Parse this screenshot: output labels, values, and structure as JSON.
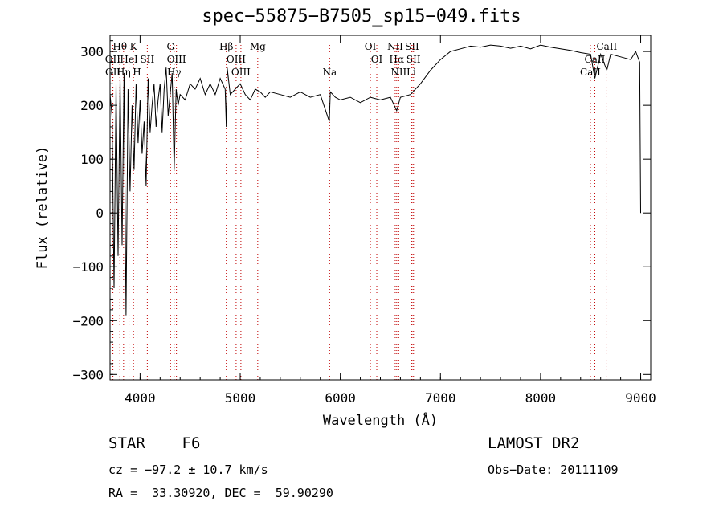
{
  "header": {
    "title": "spec−55875−B7505_sp15−049.fits"
  },
  "info": {
    "object_line": "STAR    F6",
    "survey": "LAMOST DR2",
    "cz": "cz = −97.2 ± 10.7 km/s",
    "obs_date": "Obs−Date: 20111109",
    "radec": "RA =  33.30920, DEC =  59.90290"
  },
  "chart_data": {
    "type": "line",
    "title": "spec−55875−B7505_sp15−049.fits",
    "xlabel": "Wavelength (Å)",
    "ylabel": "Flux (relative)",
    "xlim": [
      3700,
      9100
    ],
    "ylim": [
      -310,
      330
    ],
    "xticks": [
      4000,
      5000,
      6000,
      7000,
      8000,
      9000
    ],
    "xtick_labels": [
      "4000",
      "5000",
      "6000",
      "7000",
      "8000",
      "9000"
    ],
    "yticks": [
      -300,
      -200,
      -100,
      0,
      100,
      200,
      300
    ],
    "ytick_labels": [
      "−300",
      "−200",
      "−100",
      "0",
      "100",
      "200",
      "300"
    ],
    "grid": false,
    "line_color": "#000000",
    "marker_color": "#c00000",
    "series": [
      {
        "x": [
          3700,
          3720,
          3740,
          3760,
          3780,
          3800,
          3820,
          3840,
          3860,
          3880,
          3900,
          3920,
          3940,
          3960,
          3980,
          4000,
          4020,
          4040,
          4060,
          4080,
          4100,
          4120,
          4140,
          4160,
          4180,
          4200,
          4220,
          4240,
          4260,
          4280,
          4300,
          4320,
          4340,
          4360,
          4380,
          4400,
          4450,
          4500,
          4550,
          4600,
          4650,
          4700,
          4750,
          4800,
          4850,
          4861,
          4870,
          4900,
          4950,
          5000,
          5050,
          5100,
          5150,
          5200,
          5250,
          5300,
          5400,
          5500,
          5600,
          5700,
          5800,
          5890,
          5900,
          5950,
          6000,
          6100,
          6200,
          6300,
          6400,
          6500,
          6563,
          6600,
          6700,
          6800,
          6900,
          7000,
          7100,
          7200,
          7300,
          7400,
          7500,
          7600,
          7700,
          7800,
          7900,
          8000,
          8100,
          8200,
          8300,
          8400,
          8500,
          8542,
          8600,
          8662,
          8700,
          8800,
          8900,
          8950,
          8990,
          9000
        ],
        "values": [
          220,
          180,
          -140,
          240,
          -80,
          250,
          -60,
          260,
          -190,
          230,
          40,
          200,
          80,
          240,
          130,
          210,
          110,
          170,
          50,
          250,
          150,
          200,
          240,
          160,
          210,
          240,
          150,
          230,
          270,
          180,
          220,
          260,
          80,
          230,
          200,
          220,
          210,
          240,
          230,
          250,
          220,
          240,
          220,
          250,
          230,
          160,
          270,
          220,
          230,
          240,
          220,
          210,
          230,
          225,
          215,
          225,
          220,
          215,
          225,
          215,
          220,
          170,
          225,
          215,
          210,
          215,
          205,
          215,
          210,
          215,
          190,
          215,
          220,
          240,
          265,
          285,
          300,
          305,
          310,
          308,
          312,
          310,
          306,
          310,
          305,
          312,
          308,
          305,
          302,
          298,
          295,
          250,
          295,
          265,
          295,
          290,
          285,
          300,
          280,
          0
        ]
      }
    ],
    "line_markers": [
      {
        "label": "Hθ",
        "x": 3798
      },
      {
        "label": "K",
        "x": 3934
      },
      {
        "label": "G",
        "x": 4304
      },
      {
        "label": "Hβ",
        "x": 4861
      },
      {
        "label": "Mg",
        "x": 5175
      },
      {
        "label": "OI",
        "x": 6300
      },
      {
        "label": "NII",
        "x": 6548
      },
      {
        "label": "SII",
        "x": 6716
      },
      {
        "label": "CaII",
        "x": 8662
      },
      {
        "label": "OII",
        "x": 3727
      },
      {
        "label": "HeI",
        "x": 3889
      },
      {
        "label": "SII",
        "x": 4072
      },
      {
        "label": "OIII",
        "x": 4363
      },
      {
        "label": "OIII",
        "x": 4959
      },
      {
        "label": "OI",
        "x": 6364
      },
      {
        "label": "Hα",
        "x": 6563
      },
      {
        "label": "SII",
        "x": 6731
      },
      {
        "label": "CaII",
        "x": 8542
      },
      {
        "label": "OII",
        "x": 3729
      },
      {
        "label": "Hη",
        "x": 3835
      },
      {
        "label": "H",
        "x": 3969
      },
      {
        "label": "Hγ",
        "x": 4340
      },
      {
        "label": "OIII",
        "x": 5007
      },
      {
        "label": "Na",
        "x": 5893
      },
      {
        "label": "NII",
        "x": 6583
      },
      {
        "label": "Li",
        "x": 6708
      },
      {
        "label": "CaII",
        "x": 8498
      }
    ]
  }
}
